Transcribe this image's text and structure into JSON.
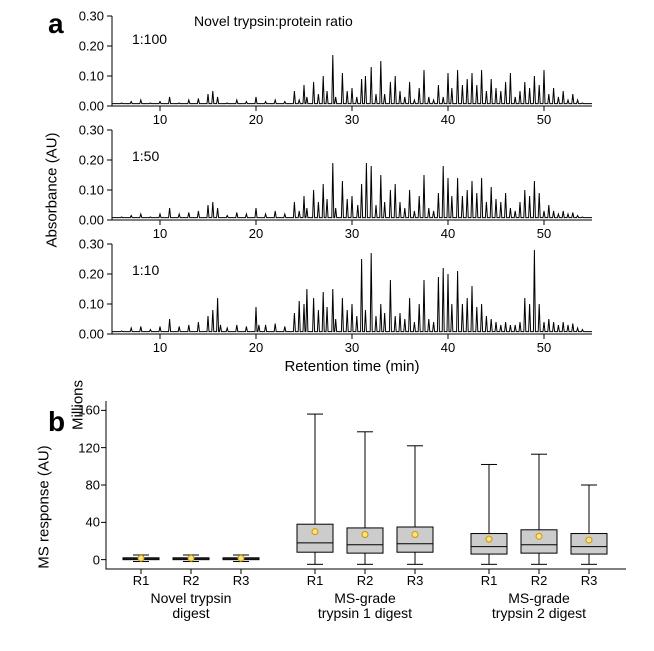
{
  "panel_a": {
    "label": "a",
    "title": "Novel trypsin:protein ratio",
    "x_axis_label": "Retention time (min)",
    "y_axis_label": "Absorbance (AU)",
    "x_range": [
      5,
      55
    ],
    "x_ticks": [
      10,
      20,
      30,
      40,
      50
    ],
    "y_range": [
      0,
      0.3
    ],
    "y_ticks": [
      "0.00",
      "0.10",
      "0.20",
      "0.30"
    ],
    "line_color": "#000000",
    "axis_color": "#000000",
    "traces": [
      {
        "ratio_label": "1:100",
        "peaks": [
          [
            6,
            0.01
          ],
          [
            7,
            0.015
          ],
          [
            8,
            0.02
          ],
          [
            9,
            0.01
          ],
          [
            10,
            0.015
          ],
          [
            11,
            0.03
          ],
          [
            12,
            0.01
          ],
          [
            13,
            0.02
          ],
          [
            14,
            0.025
          ],
          [
            15,
            0.04
          ],
          [
            15.5,
            0.05
          ],
          [
            16,
            0.03
          ],
          [
            17,
            0.01
          ],
          [
            18,
            0.02
          ],
          [
            19,
            0.015
          ],
          [
            20,
            0.03
          ],
          [
            21,
            0.015
          ],
          [
            22,
            0.02
          ],
          [
            23,
            0.015
          ],
          [
            24,
            0.05
          ],
          [
            24.5,
            0.02
          ],
          [
            25,
            0.07
          ],
          [
            25.3,
            0.03
          ],
          [
            26,
            0.08
          ],
          [
            26.5,
            0.04
          ],
          [
            27,
            0.1
          ],
          [
            27.4,
            0.05
          ],
          [
            28,
            0.17
          ],
          [
            28.3,
            0.03
          ],
          [
            29,
            0.11
          ],
          [
            29.5,
            0.05
          ],
          [
            30,
            0.06
          ],
          [
            30.5,
            0.03
          ],
          [
            31,
            0.09
          ],
          [
            31.4,
            0.1
          ],
          [
            32,
            0.13
          ],
          [
            32.5,
            0.04
          ],
          [
            33,
            0.15
          ],
          [
            33.4,
            0.04
          ],
          [
            34,
            0.08
          ],
          [
            34.5,
            0.1
          ],
          [
            35,
            0.05
          ],
          [
            35.5,
            0.03
          ],
          [
            36,
            0.08
          ],
          [
            36.5,
            0.02
          ],
          [
            37,
            0.06
          ],
          [
            37.5,
            0.12
          ],
          [
            38,
            0.03
          ],
          [
            38.5,
            0.02
          ],
          [
            39,
            0.07
          ],
          [
            39.5,
            0.03
          ],
          [
            40,
            0.11
          ],
          [
            40.4,
            0.06
          ],
          [
            41,
            0.12
          ],
          [
            41.5,
            0.07
          ],
          [
            42,
            0.09
          ],
          [
            42.5,
            0.11
          ],
          [
            43,
            0.07
          ],
          [
            43.5,
            0.12
          ],
          [
            44,
            0.05
          ],
          [
            44.5,
            0.09
          ],
          [
            45,
            0.06
          ],
          [
            45.5,
            0.05
          ],
          [
            46,
            0.08
          ],
          [
            46.5,
            0.11
          ],
          [
            47,
            0.03
          ],
          [
            47.5,
            0.05
          ],
          [
            48,
            0.08
          ],
          [
            48.5,
            0.06
          ],
          [
            49,
            0.1
          ],
          [
            49.5,
            0.07
          ],
          [
            50,
            0.12
          ],
          [
            50.5,
            0.04
          ],
          [
            51,
            0.06
          ],
          [
            51.5,
            0.03
          ],
          [
            52,
            0.05
          ],
          [
            52.5,
            0.02
          ],
          [
            53,
            0.04
          ],
          [
            53.5,
            0.02
          ],
          [
            54,
            0.01
          ]
        ]
      },
      {
        "ratio_label": "1:50",
        "peaks": [
          [
            6,
            0.01
          ],
          [
            7,
            0.015
          ],
          [
            8,
            0.02
          ],
          [
            9,
            0.01
          ],
          [
            10,
            0.02
          ],
          [
            11,
            0.04
          ],
          [
            12,
            0.02
          ],
          [
            13,
            0.025
          ],
          [
            14,
            0.03
          ],
          [
            15,
            0.05
          ],
          [
            15.5,
            0.06
          ],
          [
            16,
            0.04
          ],
          [
            17,
            0.015
          ],
          [
            18,
            0.025
          ],
          [
            19,
            0.02
          ],
          [
            20,
            0.04
          ],
          [
            21,
            0.02
          ],
          [
            22,
            0.03
          ],
          [
            23,
            0.02
          ],
          [
            24,
            0.06
          ],
          [
            24.5,
            0.03
          ],
          [
            25,
            0.08
          ],
          [
            25.3,
            0.04
          ],
          [
            26,
            0.1
          ],
          [
            26.5,
            0.06
          ],
          [
            27,
            0.12
          ],
          [
            27.4,
            0.07
          ],
          [
            28,
            0.19
          ],
          [
            28.3,
            0.04
          ],
          [
            29,
            0.13
          ],
          [
            29.5,
            0.07
          ],
          [
            30,
            0.08
          ],
          [
            30.6,
            0.05
          ],
          [
            31,
            0.12
          ],
          [
            31.5,
            0.19
          ],
          [
            32,
            0.18
          ],
          [
            32.5,
            0.05
          ],
          [
            33,
            0.15
          ],
          [
            33.4,
            0.06
          ],
          [
            34,
            0.1
          ],
          [
            34.5,
            0.12
          ],
          [
            35,
            0.06
          ],
          [
            35.5,
            0.04
          ],
          [
            36,
            0.1
          ],
          [
            36.5,
            0.03
          ],
          [
            37,
            0.08
          ],
          [
            37.5,
            0.15
          ],
          [
            38,
            0.04
          ],
          [
            38.5,
            0.03
          ],
          [
            39,
            0.09
          ],
          [
            39.5,
            0.18
          ],
          [
            40,
            0.14
          ],
          [
            40.4,
            0.08
          ],
          [
            41,
            0.14
          ],
          [
            41.5,
            0.08
          ],
          [
            42,
            0.1
          ],
          [
            42.5,
            0.13
          ],
          [
            43,
            0.09
          ],
          [
            43.5,
            0.14
          ],
          [
            44,
            0.06
          ],
          [
            44.5,
            0.11
          ],
          [
            45,
            0.07
          ],
          [
            45.5,
            0.06
          ],
          [
            46,
            0.09
          ],
          [
            46.5,
            0.04
          ],
          [
            47,
            0.03
          ],
          [
            47.5,
            0.06
          ],
          [
            48,
            0.1
          ],
          [
            48.5,
            0.08
          ],
          [
            49,
            0.13
          ],
          [
            49.5,
            0.09
          ],
          [
            50,
            0.03
          ],
          [
            50.5,
            0.05
          ],
          [
            51,
            0.03
          ],
          [
            51.5,
            0.02
          ],
          [
            52,
            0.03
          ],
          [
            52.5,
            0.02
          ],
          [
            53,
            0.025
          ],
          [
            53.5,
            0.015
          ],
          [
            54,
            0.01
          ]
        ]
      },
      {
        "ratio_label": "1:10",
        "peaks": [
          [
            6,
            0.01
          ],
          [
            7,
            0.02
          ],
          [
            8,
            0.025
          ],
          [
            9,
            0.015
          ],
          [
            10,
            0.025
          ],
          [
            11,
            0.05
          ],
          [
            12,
            0.025
          ],
          [
            13,
            0.03
          ],
          [
            14,
            0.04
          ],
          [
            15,
            0.06
          ],
          [
            15.5,
            0.08
          ],
          [
            16,
            0.12
          ],
          [
            16.3,
            0.03
          ],
          [
            17,
            0.02
          ],
          [
            18,
            0.03
          ],
          [
            19,
            0.025
          ],
          [
            20,
            0.09
          ],
          [
            20.3,
            0.03
          ],
          [
            21,
            0.03
          ],
          [
            22,
            0.035
          ],
          [
            23,
            0.025
          ],
          [
            24,
            0.07
          ],
          [
            24.5,
            0.11
          ],
          [
            25,
            0.1
          ],
          [
            25.3,
            0.15
          ],
          [
            26,
            0.12
          ],
          [
            26.5,
            0.08
          ],
          [
            27,
            0.14
          ],
          [
            27.4,
            0.09
          ],
          [
            28,
            0.15
          ],
          [
            28.3,
            0.05
          ],
          [
            29,
            0.12
          ],
          [
            29.5,
            0.08
          ],
          [
            30,
            0.1
          ],
          [
            30.5,
            0.06
          ],
          [
            31,
            0.25
          ],
          [
            31.4,
            0.08
          ],
          [
            32,
            0.27
          ],
          [
            32.5,
            0.06
          ],
          [
            33,
            0.1
          ],
          [
            33.4,
            0.07
          ],
          [
            34,
            0.18
          ],
          [
            34.5,
            0.06
          ],
          [
            35,
            0.07
          ],
          [
            35.5,
            0.05
          ],
          [
            36,
            0.12
          ],
          [
            36.5,
            0.04
          ],
          [
            37,
            0.1
          ],
          [
            37.5,
            0.18
          ],
          [
            38,
            0.05
          ],
          [
            38.5,
            0.04
          ],
          [
            39,
            0.19
          ],
          [
            39.5,
            0.22
          ],
          [
            40,
            0.2
          ],
          [
            40.4,
            0.1
          ],
          [
            41,
            0.21
          ],
          [
            41.5,
            0.1
          ],
          [
            42,
            0.12
          ],
          [
            42.5,
            0.16
          ],
          [
            43,
            0.09
          ],
          [
            43.5,
            0.1
          ],
          [
            44,
            0.06
          ],
          [
            44.5,
            0.05
          ],
          [
            45,
            0.04
          ],
          [
            45.5,
            0.03
          ],
          [
            46,
            0.04
          ],
          [
            46.5,
            0.03
          ],
          [
            47,
            0.03
          ],
          [
            47.5,
            0.04
          ],
          [
            48,
            0.12
          ],
          [
            48.5,
            0.1
          ],
          [
            49,
            0.28
          ],
          [
            49.5,
            0.1
          ],
          [
            50,
            0.04
          ],
          [
            50.5,
            0.05
          ],
          [
            51,
            0.04
          ],
          [
            51.5,
            0.03
          ],
          [
            52,
            0.04
          ],
          [
            52.5,
            0.03
          ],
          [
            53,
            0.035
          ],
          [
            53.5,
            0.02
          ],
          [
            54,
            0.015
          ]
        ]
      }
    ]
  },
  "panel_b": {
    "label": "b",
    "y_axis_label": "MS response (AU)",
    "y_unit_label": "Millions",
    "y_range": [
      -10,
      170
    ],
    "y_ticks": [
      0,
      40,
      80,
      120,
      160
    ],
    "axis_color": "#000000",
    "box_fill": "#cccccc",
    "box_stroke": "#000000",
    "mean_marker_stroke": "#c79a00",
    "mean_marker_fill": "#ffe083",
    "groups": [
      {
        "name": "Novel trypsin digest",
        "label_line1": "Novel trypsin",
        "label_line2": "digest"
      },
      {
        "name": "MS-grade trypsin 1 digest",
        "label_line1": "MS-grade",
        "label_line2": "trypsin 1 digest"
      },
      {
        "name": "MS-grade trypsin 2 digest",
        "label_line1": "MS-grade",
        "label_line2": "trypsin 2 digest"
      }
    ],
    "replicate_labels": [
      "R1",
      "R2",
      "R3"
    ],
    "boxes": [
      {
        "group": 0,
        "rep": 0,
        "whisker_lo": -2,
        "q1": 0,
        "median": 1,
        "q3": 2,
        "whisker_hi": 5,
        "mean": 1.5
      },
      {
        "group": 0,
        "rep": 1,
        "whisker_lo": -2,
        "q1": 0,
        "median": 1,
        "q3": 2,
        "whisker_hi": 5,
        "mean": 1.5
      },
      {
        "group": 0,
        "rep": 2,
        "whisker_lo": -2,
        "q1": 0,
        "median": 1,
        "q3": 2,
        "whisker_hi": 5,
        "mean": 1.5
      },
      {
        "group": 1,
        "rep": 0,
        "whisker_lo": -5,
        "q1": 8,
        "median": 18,
        "q3": 38,
        "whisker_hi": 156,
        "mean": 30
      },
      {
        "group": 1,
        "rep": 1,
        "whisker_lo": -5,
        "q1": 7,
        "median": 16,
        "q3": 34,
        "whisker_hi": 137,
        "mean": 27
      },
      {
        "group": 1,
        "rep": 2,
        "whisker_lo": -5,
        "q1": 8,
        "median": 17,
        "q3": 35,
        "whisker_hi": 122,
        "mean": 27
      },
      {
        "group": 2,
        "rep": 0,
        "whisker_lo": -5,
        "q1": 6,
        "median": 14,
        "q3": 28,
        "whisker_hi": 102,
        "mean": 22
      },
      {
        "group": 2,
        "rep": 1,
        "whisker_lo": -5,
        "q1": 7,
        "median": 16,
        "q3": 32,
        "whisker_hi": 113,
        "mean": 25
      },
      {
        "group": 2,
        "rep": 2,
        "whisker_lo": -5,
        "q1": 6,
        "median": 14,
        "q3": 28,
        "whisker_hi": 80,
        "mean": 21
      }
    ]
  }
}
